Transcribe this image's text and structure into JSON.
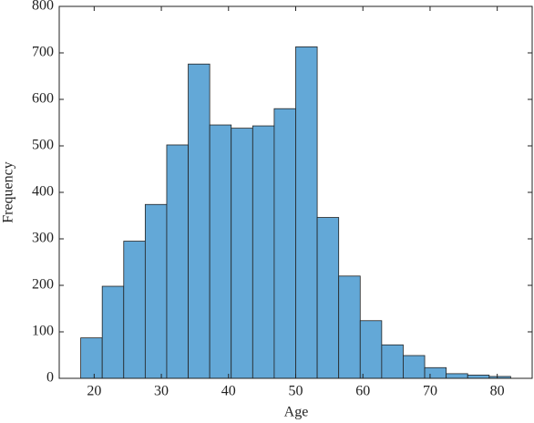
{
  "chart_data": {
    "type": "histogram",
    "xlabel": "Age",
    "ylabel": "Frequency",
    "bins": [
      18,
      21.2,
      24.4,
      27.6,
      30.8,
      34,
      37.2,
      40.4,
      43.6,
      46.8,
      50,
      53.2,
      56.4,
      59.6,
      62.8,
      66,
      69.2,
      72.4,
      75.6,
      78.8,
      82
    ],
    "values": [
      87,
      198,
      295,
      374,
      502,
      676,
      545,
      538,
      543,
      580,
      713,
      346,
      220,
      124,
      72,
      49,
      23,
      10,
      7,
      4
    ],
    "color": "#63a8d7",
    "xlim": [
      14.8,
      85.2
    ],
    "xticks": [
      20,
      30,
      40,
      50,
      60,
      70,
      80
    ],
    "ylim": [
      0,
      800
    ],
    "yticks": [
      0,
      100,
      200,
      300,
      400,
      500,
      600,
      700,
      800
    ]
  }
}
